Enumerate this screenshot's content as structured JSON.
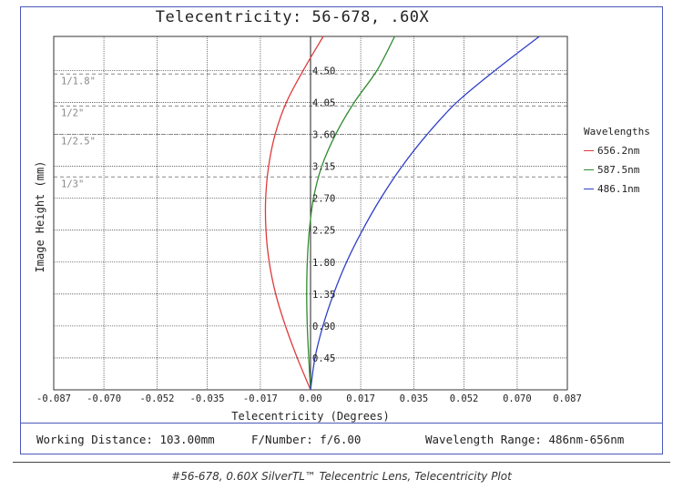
{
  "chart_data": {
    "type": "line",
    "title": "Telecentricity: 56-678, .60X",
    "xlabel": "Telecentricity (Degrees)",
    "ylabel": "Image Height (mm)",
    "xlim": [
      -0.087,
      0.087
    ],
    "ylim": [
      0,
      4.98
    ],
    "x_ticks": [
      "-0.087",
      "-0.070",
      "-0.052",
      "-0.035",
      "-0.017",
      "0.00",
      "0.017",
      "0.035",
      "0.052",
      "0.070",
      "0.087"
    ],
    "x_tick_values": [
      -0.087,
      -0.07,
      -0.052,
      -0.035,
      -0.017,
      0.0,
      0.017,
      0.035,
      0.052,
      0.07,
      0.087
    ],
    "y_ticks": [
      "0.45",
      "0.90",
      "1.35",
      "1.80",
      "2.25",
      "2.70",
      "3.15",
      "3.60",
      "4.05",
      "4.50"
    ],
    "y_tick_values": [
      0.45,
      0.9,
      1.35,
      1.8,
      2.25,
      2.7,
      3.15,
      3.6,
      4.05,
      4.5
    ],
    "grid": true,
    "legend": {
      "title": "Wavelengths",
      "placement": "right"
    },
    "sensor_formats": [
      {
        "label": "1/1.8\"",
        "y": 4.45
      },
      {
        "label": "1/2\"",
        "y": 4.0
      },
      {
        "label": "1/2.5\"",
        "y": 3.6
      },
      {
        "label": "1/3\"",
        "y": 3.0
      }
    ],
    "series": [
      {
        "name": "656.2nm",
        "color": "#e03a3a",
        "x": [
          0.0,
          -0.0045,
          -0.0085,
          -0.0118,
          -0.014,
          -0.0151,
          -0.0152,
          -0.0142,
          -0.012,
          -0.0082,
          -0.0025,
          0.0043
        ],
        "y": [
          0.0,
          0.45,
          0.9,
          1.35,
          1.8,
          2.25,
          2.7,
          3.15,
          3.6,
          4.05,
          4.5,
          4.98
        ]
      },
      {
        "name": "587.5nm",
        "color": "#2f8a2f",
        "x": [
          0.0,
          -0.0006,
          -0.0011,
          -0.0013,
          -0.0011,
          -0.0004,
          0.001,
          0.0038,
          0.0085,
          0.0148,
          0.0225,
          0.0285
        ],
        "y": [
          0.0,
          0.45,
          0.9,
          1.35,
          1.8,
          2.25,
          2.7,
          3.15,
          3.6,
          4.05,
          4.5,
          4.98
        ]
      },
      {
        "name": "486.1nm",
        "color": "#2f3fc8",
        "x": [
          0.0,
          0.0015,
          0.0042,
          0.0078,
          0.0122,
          0.0176,
          0.0238,
          0.031,
          0.0395,
          0.0495,
          0.0625,
          0.0775
        ],
        "y": [
          0.0,
          0.45,
          0.9,
          1.35,
          1.8,
          2.25,
          2.7,
          3.15,
          3.6,
          4.05,
          4.5,
          4.98
        ]
      }
    ]
  },
  "footer": {
    "working_distance": "Working Distance: 103.00mm",
    "f_number": "F/Number: f/6.00",
    "wavelength_range": "Wavelength Range: 486nm-656nm"
  },
  "caption": "#56-678, 0.60X SilverTL™ Telecentric Lens, Telecentricity Plot"
}
